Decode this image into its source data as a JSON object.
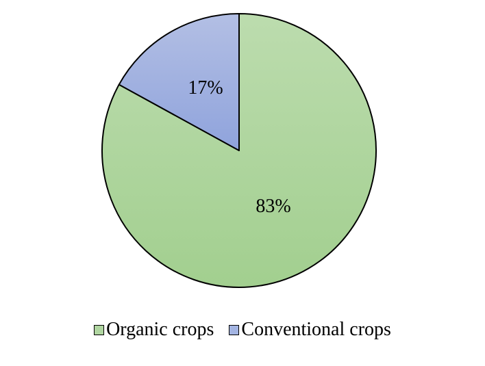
{
  "chart_data": {
    "type": "pie",
    "title": "",
    "slices": [
      {
        "label": "Organic crops",
        "value": 83,
        "display": "83%",
        "color": "#a9d29a",
        "color_light": "#bfddb2"
      },
      {
        "label": "Conventional crops",
        "value": 17,
        "display": "17%",
        "color": "#9aaee0",
        "color_light": "#b5c2e6"
      }
    ],
    "legend_position": "bottom",
    "outline_color": "#000000"
  }
}
